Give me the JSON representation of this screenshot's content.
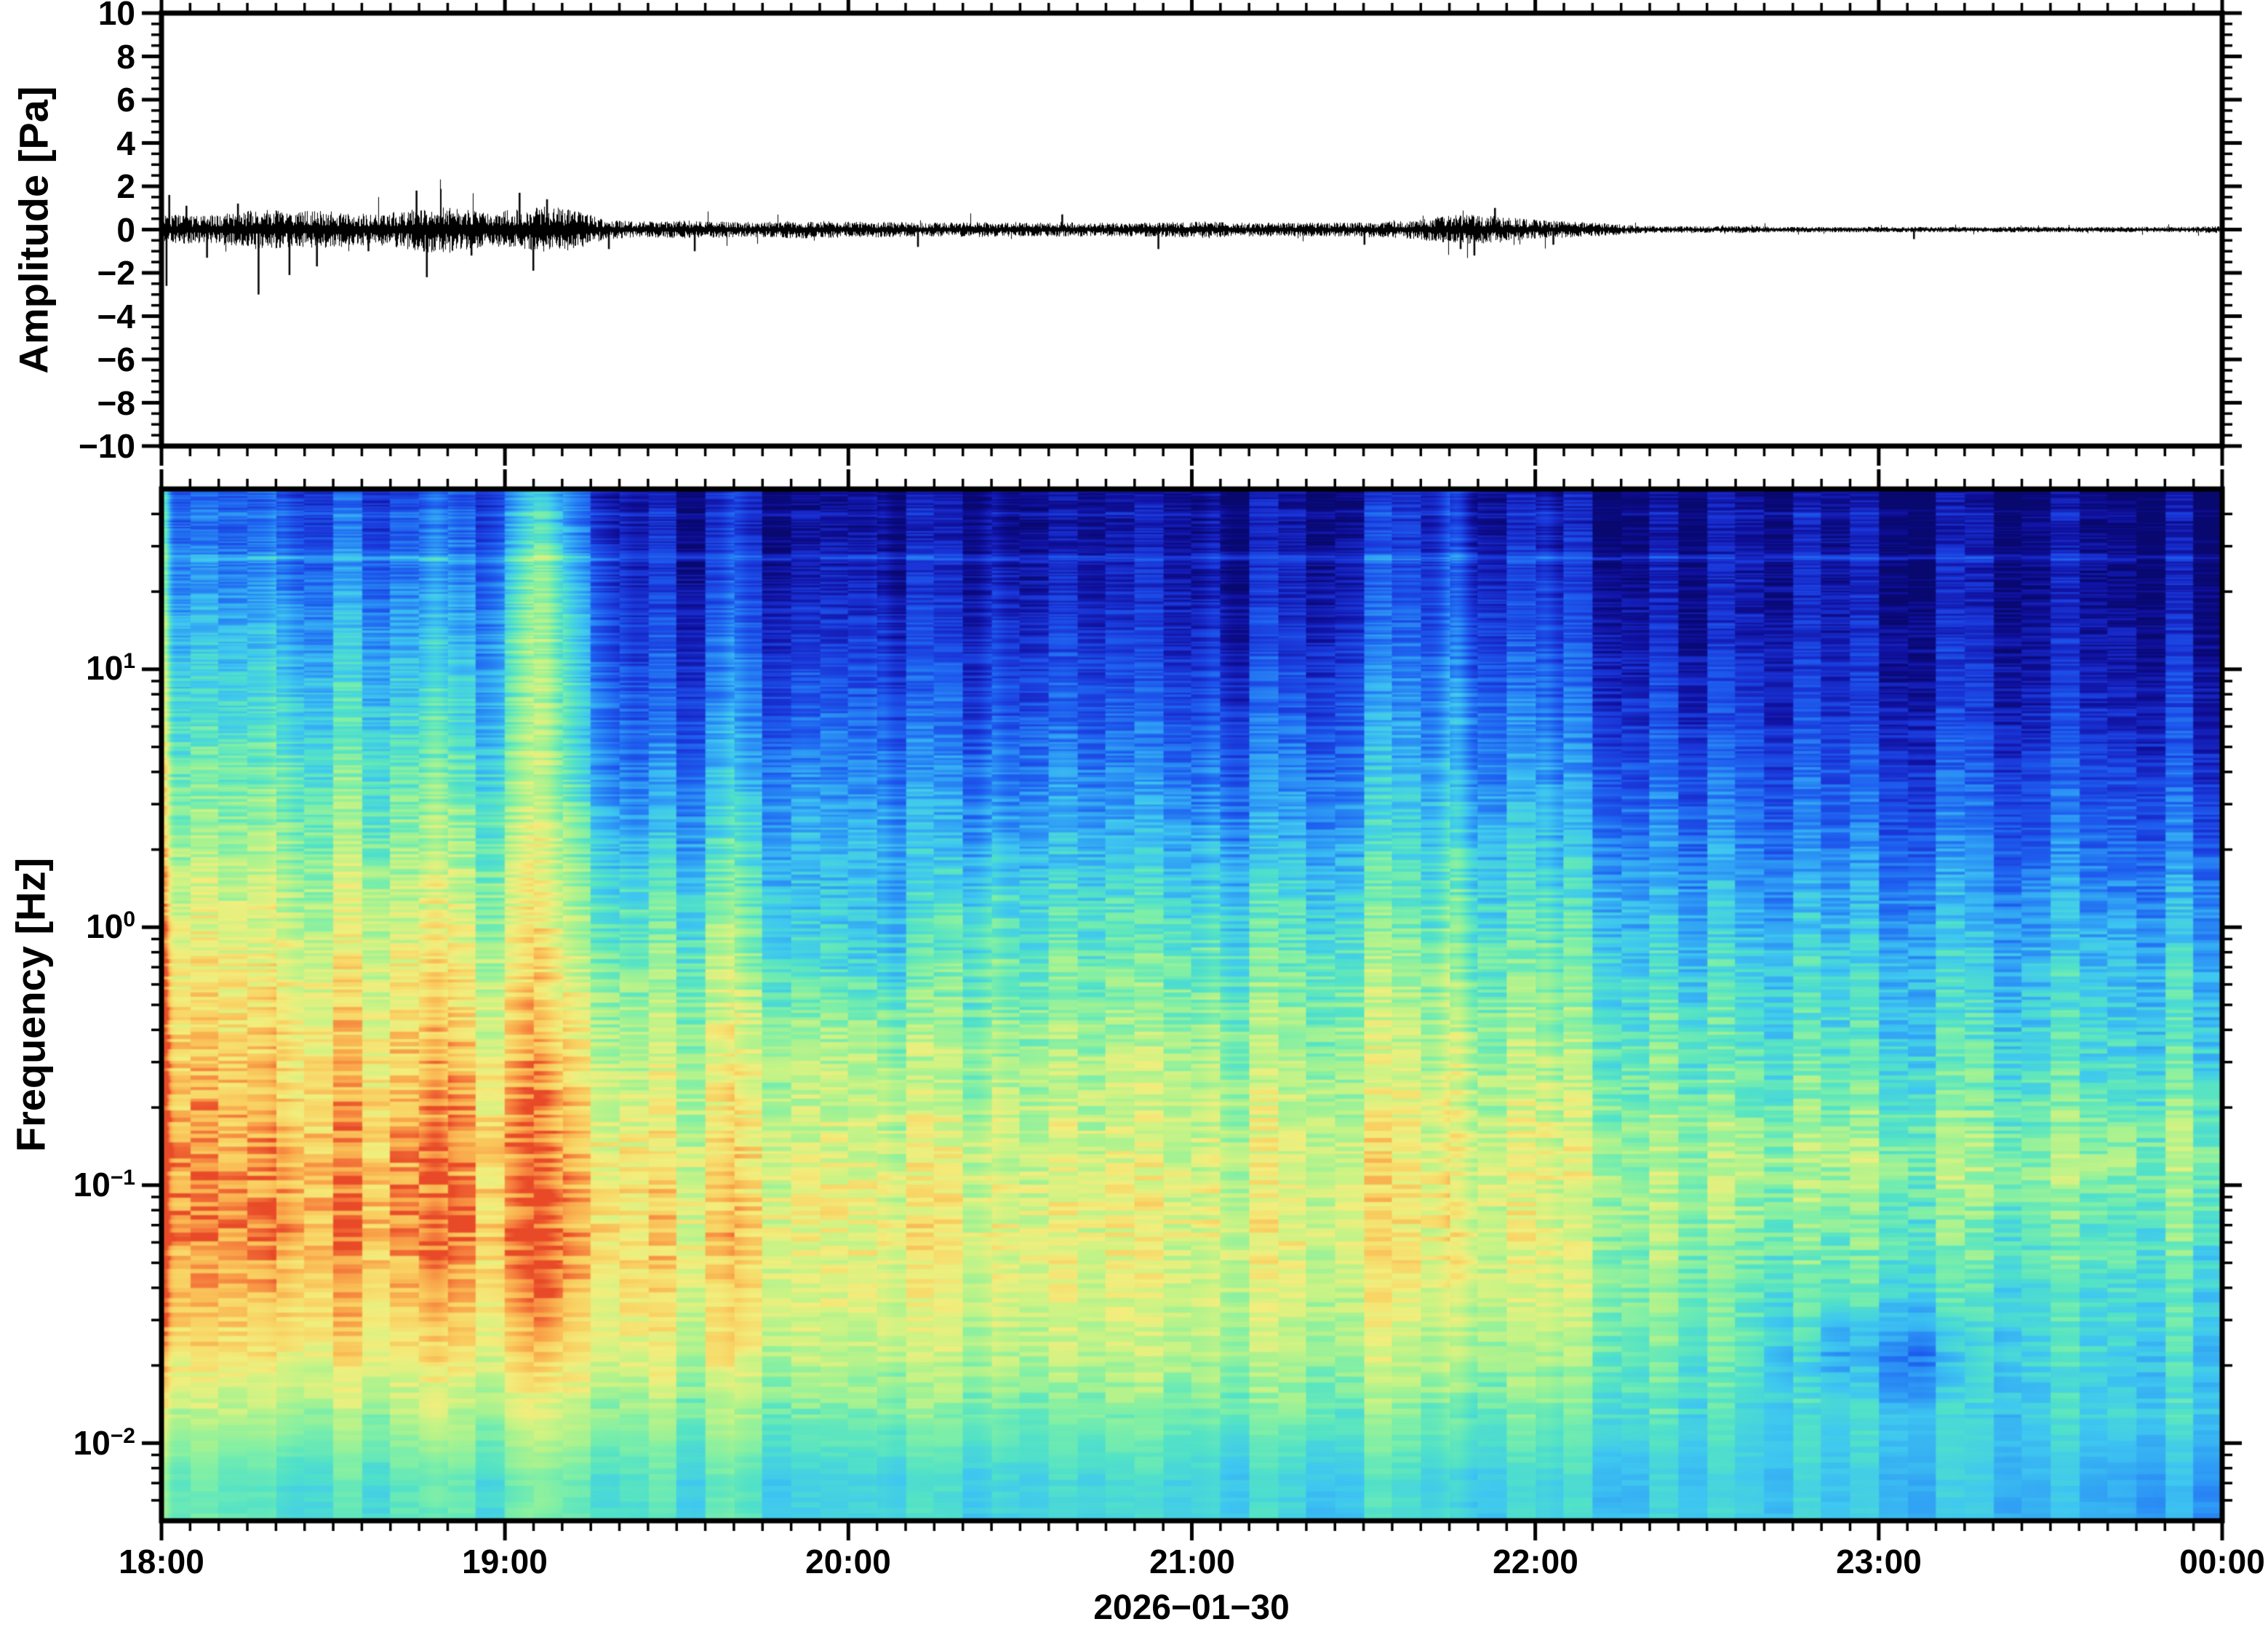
{
  "figure": {
    "background": "#ffffff",
    "frame_color": "#000000"
  },
  "top_panel": {
    "ylabel": "Amplitude [Pa]",
    "y_tick_labels": [
      "10",
      "8",
      "6",
      "4",
      "2",
      "0",
      "−2",
      "−4",
      "−6",
      "−8",
      "−10"
    ],
    "y_min": -10,
    "y_max": 10,
    "y_major_step": 2,
    "y_minor_step": 0.5
  },
  "bottom_panel": {
    "ylabel": "Frequency [Hz]",
    "y_tick_labels": [
      {
        "base": "10",
        "exp": "1"
      },
      {
        "base": "10",
        "exp": "0"
      },
      {
        "base": "10",
        "exp": "−1"
      },
      {
        "base": "10",
        "exp": "−2"
      }
    ]
  },
  "x_axis": {
    "tick_labels": [
      "18:00",
      "19:00",
      "20:00",
      "21:00",
      "22:00",
      "23:00",
      "00:00"
    ],
    "date_label": "2026−01−30",
    "start_hour": 18,
    "end_hour": 24,
    "minor_tick_minutes": 5
  },
  "chart_data": [
    {
      "type": "line",
      "title": "acoustic pressure waveform",
      "ylabel": "Amplitude [Pa]",
      "ylim": [
        -10,
        10
      ],
      "x_range_hours": [
        18,
        24
      ],
      "envelope_step_minutes": 5,
      "envelope_pa": [
        0.22,
        0.2,
        0.24,
        0.3,
        0.26,
        0.28,
        0.25,
        0.22,
        0.28,
        0.34,
        0.3,
        0.26,
        0.3,
        0.34,
        0.28,
        0.14,
        0.12,
        0.12,
        0.13,
        0.12,
        0.11,
        0.12,
        0.13,
        0.12,
        0.12,
        0.11,
        0.1,
        0.1,
        0.11,
        0.1,
        0.1,
        0.11,
        0.1,
        0.1,
        0.1,
        0.11,
        0.12,
        0.1,
        0.1,
        0.1,
        0.1,
        0.1,
        0.11,
        0.13,
        0.18,
        0.22,
        0.2,
        0.16,
        0.13,
        0.11,
        0.09,
        0.06,
        0.05,
        0.05,
        0.05,
        0.05,
        0.04,
        0.04,
        0.04,
        0.04,
        0.04,
        0.04,
        0.04,
        0.04,
        0.04,
        0.04,
        0.04,
        0.04,
        0.04,
        0.04,
        0.04,
        0.05
      ],
      "spikes_pa": [
        [
          18.012,
          -1.3
        ],
        [
          18.02,
          0.8
        ],
        [
          18.07,
          0.55
        ],
        [
          18.13,
          -0.65
        ],
        [
          18.22,
          0.6
        ],
        [
          18.28,
          -1.5
        ],
        [
          18.37,
          -1.05
        ],
        [
          18.45,
          -0.85
        ],
        [
          18.6,
          -0.5
        ],
        [
          18.74,
          0.9
        ],
        [
          18.77,
          -1.1
        ],
        [
          18.9,
          -0.6
        ],
        [
          19.04,
          0.85
        ],
        [
          19.08,
          -0.95
        ],
        [
          19.12,
          0.7
        ],
        [
          19.3,
          -0.45
        ],
        [
          19.55,
          -0.5
        ],
        [
          20.2,
          -0.4
        ],
        [
          20.62,
          0.35
        ],
        [
          20.9,
          -0.45
        ],
        [
          21.5,
          -0.35
        ],
        [
          21.78,
          -0.45
        ],
        [
          21.82,
          -0.6
        ],
        [
          21.88,
          0.5
        ],
        [
          22.05,
          -0.35
        ],
        [
          23.1,
          -0.22
        ]
      ]
    },
    {
      "type": "heatmap",
      "title": "infrasound spectrogram",
      "ylabel": "Frequency [Hz]",
      "yscale": "log",
      "ylim_hz": [
        0.005,
        50
      ],
      "x_range_hours": [
        18,
        24
      ],
      "column_step_hours": 0.25,
      "intensity_scale": "normalized relative spectral power 0-1",
      "row_freqs_hz": [
        43,
        24,
        13.5,
        7.5,
        4.2,
        2.3,
        1.3,
        0.72,
        0.4,
        0.22,
        0.125,
        0.07,
        0.04,
        0.022,
        0.012,
        0.007
      ],
      "intensity_norm": [
        [
          0.22,
          0.24,
          0.22,
          0.18,
          0.3,
          0.08,
          0.07,
          0.09,
          0.07,
          0.06,
          0.08,
          0.06,
          0.05,
          0.08,
          0.13,
          0.11,
          0.07,
          0.05,
          0.04,
          0.04,
          0.04,
          0.03,
          0.04,
          0.04
        ],
        [
          0.3,
          0.33,
          0.31,
          0.26,
          0.45,
          0.13,
          0.12,
          0.16,
          0.12,
          0.11,
          0.14,
          0.1,
          0.1,
          0.14,
          0.2,
          0.18,
          0.12,
          0.08,
          0.07,
          0.07,
          0.07,
          0.06,
          0.07,
          0.07
        ],
        [
          0.4,
          0.43,
          0.41,
          0.35,
          0.5,
          0.18,
          0.2,
          0.23,
          0.19,
          0.17,
          0.21,
          0.16,
          0.15,
          0.2,
          0.27,
          0.25,
          0.18,
          0.13,
          0.11,
          0.1,
          0.11,
          0.09,
          0.1,
          0.11
        ],
        [
          0.48,
          0.51,
          0.49,
          0.43,
          0.52,
          0.24,
          0.27,
          0.31,
          0.26,
          0.24,
          0.28,
          0.23,
          0.22,
          0.27,
          0.34,
          0.32,
          0.25,
          0.19,
          0.16,
          0.15,
          0.16,
          0.14,
          0.15,
          0.16
        ],
        [
          0.55,
          0.58,
          0.56,
          0.51,
          0.55,
          0.3,
          0.35,
          0.39,
          0.34,
          0.32,
          0.36,
          0.31,
          0.3,
          0.35,
          0.41,
          0.39,
          0.32,
          0.26,
          0.23,
          0.22,
          0.23,
          0.21,
          0.22,
          0.23
        ],
        [
          0.62,
          0.65,
          0.63,
          0.59,
          0.6,
          0.4,
          0.44,
          0.47,
          0.43,
          0.41,
          0.44,
          0.4,
          0.39,
          0.43,
          0.48,
          0.46,
          0.4,
          0.34,
          0.3,
          0.29,
          0.3,
          0.28,
          0.29,
          0.3
        ],
        [
          0.7,
          0.72,
          0.71,
          0.67,
          0.65,
          0.52,
          0.55,
          0.5,
          0.46,
          0.52,
          0.54,
          0.51,
          0.5,
          0.53,
          0.56,
          0.54,
          0.49,
          0.43,
          0.39,
          0.38,
          0.39,
          0.37,
          0.38,
          0.39
        ],
        [
          0.76,
          0.78,
          0.77,
          0.74,
          0.7,
          0.6,
          0.62,
          0.56,
          0.5,
          0.6,
          0.61,
          0.59,
          0.58,
          0.61,
          0.63,
          0.61,
          0.57,
          0.51,
          0.47,
          0.46,
          0.47,
          0.45,
          0.46,
          0.47
        ],
        [
          0.82,
          0.84,
          0.83,
          0.8,
          0.76,
          0.68,
          0.68,
          0.7,
          0.67,
          0.65,
          0.68,
          0.66,
          0.65,
          0.68,
          0.69,
          0.67,
          0.63,
          0.57,
          0.52,
          0.51,
          0.52,
          0.5,
          0.51,
          0.52
        ],
        [
          0.86,
          0.88,
          0.87,
          0.86,
          0.82,
          0.74,
          0.73,
          0.75,
          0.72,
          0.7,
          0.73,
          0.71,
          0.7,
          0.73,
          0.74,
          0.72,
          0.69,
          0.63,
          0.59,
          0.58,
          0.59,
          0.57,
          0.58,
          0.59
        ],
        [
          0.9,
          0.92,
          0.91,
          0.88,
          0.87,
          0.8,
          0.78,
          0.8,
          0.77,
          0.75,
          0.77,
          0.75,
          0.74,
          0.77,
          0.78,
          0.76,
          0.73,
          0.69,
          0.67,
          0.66,
          0.67,
          0.65,
          0.66,
          0.67
        ],
        [
          0.92,
          0.94,
          0.93,
          0.9,
          0.89,
          0.84,
          0.81,
          0.82,
          0.8,
          0.78,
          0.79,
          0.77,
          0.77,
          0.79,
          0.8,
          0.78,
          0.74,
          0.67,
          0.61,
          0.59,
          0.6,
          0.58,
          0.59,
          0.6
        ],
        [
          0.88,
          0.9,
          0.88,
          0.86,
          0.87,
          0.82,
          0.79,
          0.8,
          0.78,
          0.76,
          0.77,
          0.75,
          0.74,
          0.76,
          0.77,
          0.75,
          0.71,
          0.64,
          0.57,
          0.54,
          0.55,
          0.53,
          0.54,
          0.55
        ],
        [
          0.8,
          0.82,
          0.8,
          0.78,
          0.79,
          0.76,
          0.74,
          0.75,
          0.73,
          0.71,
          0.72,
          0.7,
          0.69,
          0.7,
          0.71,
          0.69,
          0.66,
          0.6,
          0.54,
          0.4,
          0.36,
          0.5,
          0.52,
          0.5
        ],
        [
          0.66,
          0.67,
          0.66,
          0.65,
          0.66,
          0.64,
          0.62,
          0.62,
          0.61,
          0.6,
          0.61,
          0.6,
          0.59,
          0.6,
          0.6,
          0.59,
          0.57,
          0.54,
          0.51,
          0.49,
          0.5,
          0.48,
          0.49,
          0.5
        ],
        [
          0.56,
          0.55,
          0.55,
          0.54,
          0.55,
          0.54,
          0.52,
          0.52,
          0.52,
          0.51,
          0.52,
          0.51,
          0.5,
          0.5,
          0.51,
          0.5,
          0.49,
          0.48,
          0.47,
          0.45,
          0.46,
          0.44,
          0.43,
          0.41
        ]
      ],
      "spectral_lines": [
        {
          "freq_hz": 27,
          "boost": 0.12
        },
        {
          "freq_hz": 40,
          "boost": 0.06
        }
      ],
      "events": [
        {
          "t": 18.01,
          "hw": 0.015,
          "boost": 0.3
        },
        {
          "t": 18.35,
          "hw": 0.03,
          "boost": 0.06
        },
        {
          "t": 18.8,
          "hw": 0.04,
          "boost": 0.1
        },
        {
          "t": 19.09,
          "hw": 0.075,
          "boost": 0.16
        },
        {
          "t": 19.67,
          "hw": 0.03,
          "boost": 0.07
        },
        {
          "t": 20.1,
          "hw": 0.025,
          "boost": 0.06
        },
        {
          "t": 20.42,
          "hw": 0.03,
          "boost": 0.07
        },
        {
          "t": 21.07,
          "hw": 0.035,
          "boost": 0.06
        },
        {
          "t": 21.77,
          "hw": 0.04,
          "boost": 0.18
        },
        {
          "t": 22.03,
          "hw": 0.03,
          "boost": 0.07
        }
      ],
      "colormap_stops": [
        {
          "v": 0.0,
          "c": "#08086E"
        },
        {
          "v": 0.08,
          "c": "#10109E"
        },
        {
          "v": 0.18,
          "c": "#1A35D8"
        },
        {
          "v": 0.28,
          "c": "#1E60F0"
        },
        {
          "v": 0.38,
          "c": "#2E9AF5"
        },
        {
          "v": 0.47,
          "c": "#3FC8F0"
        },
        {
          "v": 0.55,
          "c": "#52E2C8"
        },
        {
          "v": 0.62,
          "c": "#7EEFA8"
        },
        {
          "v": 0.68,
          "c": "#A8F291"
        },
        {
          "v": 0.74,
          "c": "#CFF384"
        },
        {
          "v": 0.8,
          "c": "#F2EE7D"
        },
        {
          "v": 0.87,
          "c": "#F9D263"
        },
        {
          "v": 0.93,
          "c": "#F9A84B"
        },
        {
          "v": 0.97,
          "c": "#F4763A"
        },
        {
          "v": 1.0,
          "c": "#E84A28"
        }
      ]
    }
  ]
}
